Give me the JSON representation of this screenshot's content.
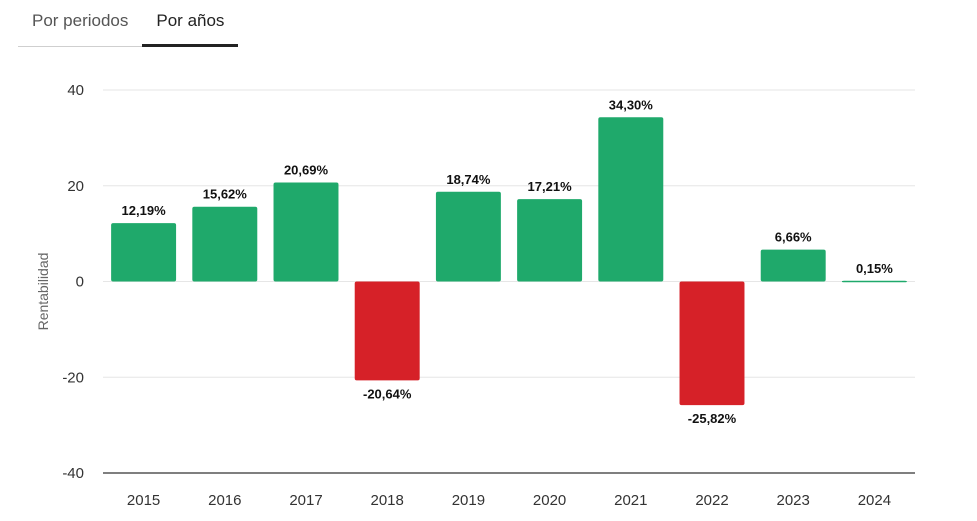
{
  "tabs": [
    {
      "label": "Por periodos",
      "active": false
    },
    {
      "label": "Por años",
      "active": true
    }
  ],
  "colors": {
    "positive": "#1fa96b",
    "negative": "#d62128",
    "grid": "#e6e6e6",
    "axis": "#333333",
    "text": "#333333"
  },
  "chart_data": {
    "type": "bar",
    "ylabel": "Rentabilidad",
    "ylim": [
      -40,
      40
    ],
    "yticks": [
      -40,
      -20,
      0,
      20,
      40
    ],
    "ytick_labels": [
      "-40",
      "-20",
      "0",
      "20",
      "40"
    ],
    "categories": [
      "2015",
      "2016",
      "2017",
      "2018",
      "2019",
      "2020",
      "2021",
      "2022",
      "2023",
      "2024"
    ],
    "values": [
      12.19,
      15.62,
      20.69,
      -20.64,
      18.74,
      17.21,
      34.3,
      -25.82,
      6.66,
      0.15
    ],
    "data_labels": [
      "12,19%",
      "15,62%",
      "20,69%",
      "-20,64%",
      "18,74%",
      "17,21%",
      "34,30%",
      "-25,82%",
      "6,66%",
      "0,15%"
    ],
    "grid": true,
    "legend": "none"
  }
}
